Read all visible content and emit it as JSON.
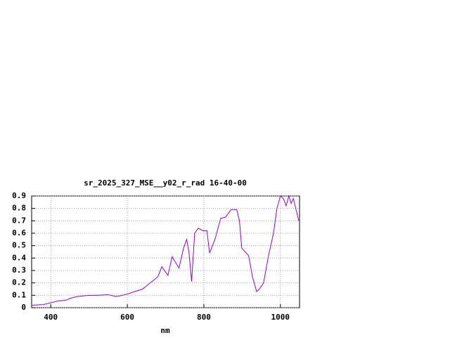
{
  "chart_data": {
    "type": "line",
    "title": "sr_2025_327_MSE__y02_r_rad 16-40-00",
    "x_label": "nm",
    "x": [
      350,
      380,
      400,
      420,
      440,
      450,
      470,
      500,
      520,
      550,
      570,
      580,
      600,
      620,
      640,
      660,
      680,
      690,
      706,
      717,
      735,
      747,
      755,
      761,
      768,
      776,
      785,
      798,
      808,
      815,
      829,
      844,
      857,
      871,
      886,
      893,
      899,
      908,
      917,
      927,
      938,
      945,
      956,
      969,
      982,
      991,
      1000,
      1008,
      1015,
      1022,
      1028,
      1034,
      1040,
      1048
    ],
    "series": [
      {
        "name": "sr_2025_327_MSE__y02_r_rad",
        "color": "#9400d3",
        "values": [
          0.02,
          0.025,
          0.04,
          0.055,
          0.06,
          0.075,
          0.09,
          0.1,
          0.1,
          0.105,
          0.09,
          0.095,
          0.11,
          0.13,
          0.15,
          0.2,
          0.25,
          0.33,
          0.26,
          0.41,
          0.32,
          0.48,
          0.55,
          0.45,
          0.21,
          0.6,
          0.64,
          0.62,
          0.62,
          0.44,
          0.55,
          0.72,
          0.73,
          0.79,
          0.79,
          0.7,
          0.48,
          0.45,
          0.42,
          0.25,
          0.13,
          0.15,
          0.2,
          0.42,
          0.6,
          0.8,
          0.9,
          0.88,
          0.82,
          0.9,
          0.84,
          0.88,
          0.8,
          0.7
        ]
      }
    ],
    "xlim": [
      350,
      1050
    ],
    "ylim": [
      0,
      0.9
    ],
    "xticks": [
      400,
      600,
      800,
      1000
    ],
    "yticks": [
      0,
      0.1,
      0.2,
      0.3,
      0.4,
      0.5,
      0.6,
      0.7,
      0.8,
      0.9
    ],
    "grid": true
  }
}
